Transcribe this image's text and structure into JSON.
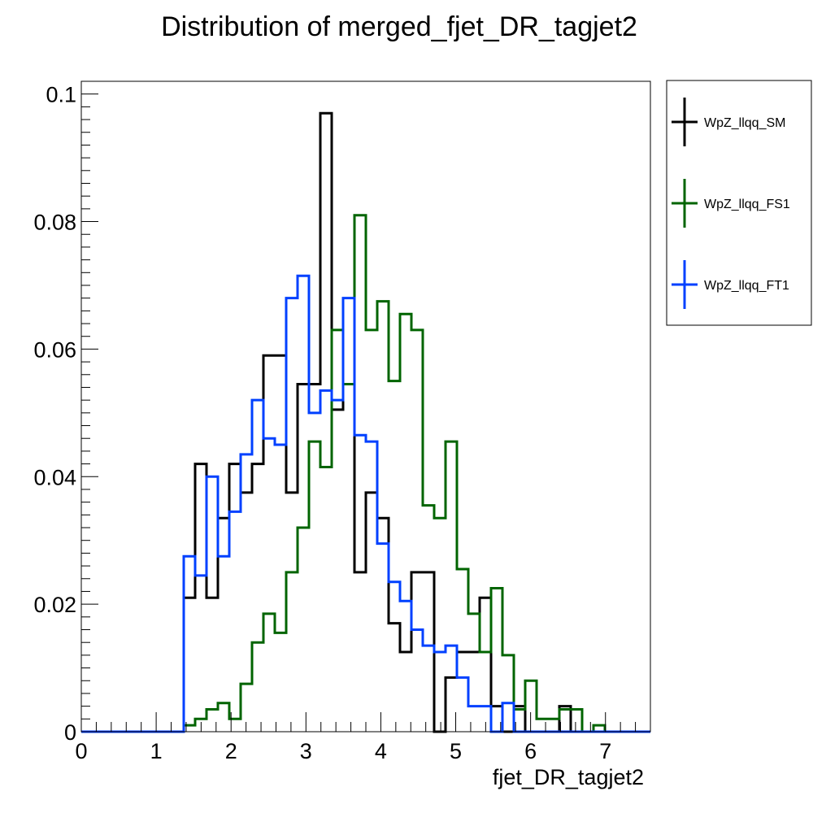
{
  "chart_data": {
    "type": "step-histogram",
    "title": "Distribution of merged_fjet_DR_tagjet2",
    "xlabel": "fjet_DR_tagjet2",
    "ylabel": "",
    "xlim": [
      0,
      7.6
    ],
    "ylim": [
      0,
      0.102
    ],
    "x_ticks": [
      "0",
      "1",
      "2",
      "3",
      "4",
      "5",
      "6",
      "7"
    ],
    "y_ticks": [
      "0",
      "0.02",
      "0.04",
      "0.06",
      "0.08",
      "0.1"
    ],
    "y_tick_values": [
      0,
      0.02,
      0.04,
      0.06,
      0.08,
      0.1
    ],
    "bin_start": 0,
    "bin_width": 0.152,
    "grid": false,
    "legend_position": "right",
    "series": [
      {
        "name": "WpZ_llqq_SM",
        "color": "#000000",
        "values": [
          0,
          0,
          0,
          0,
          0,
          0,
          0,
          0,
          0,
          0.021,
          0.042,
          0.021,
          0.0335,
          0.042,
          0.0375,
          0.042,
          0.059,
          0.059,
          0.0375,
          0.0545,
          0.0545,
          0.097,
          0.0505,
          0.0545,
          0.025,
          0.0375,
          0.0335,
          0.017,
          0.0125,
          0.025,
          0.025,
          0,
          0.0085,
          0.0125,
          0.0125,
          0.021,
          0.004,
          0,
          0.004,
          0,
          0,
          0,
          0.004,
          0,
          0,
          0,
          0,
          0,
          0,
          0
        ]
      },
      {
        "name": "WpZ_llqq_FS1",
        "color": "#006400",
        "values": [
          0,
          0,
          0,
          0,
          0,
          0,
          0,
          0,
          0,
          0.001,
          0.002,
          0.0035,
          0.0045,
          0.002,
          0.0075,
          0.014,
          0.0185,
          0.0155,
          0.025,
          0.032,
          0.0455,
          0.0415,
          0.063,
          0.0545,
          0.081,
          0.063,
          0.0675,
          0.055,
          0.0655,
          0.063,
          0.0355,
          0.0335,
          0.0455,
          0.0255,
          0.0185,
          0.0125,
          0.0225,
          0.012,
          0.0035,
          0.008,
          0.002,
          0.002,
          0.0035,
          0.0035,
          0,
          0.001,
          0,
          0,
          0,
          0
        ]
      },
      {
        "name": "WpZ_llqq_FT1",
        "color": "#0040ff",
        "values": [
          0,
          0,
          0,
          0,
          0,
          0,
          0,
          0,
          0,
          0.0275,
          0.0245,
          0.04,
          0.0275,
          0.0345,
          0.0435,
          0.052,
          0.046,
          0.045,
          0.068,
          0.0715,
          0.05,
          0.0535,
          0.052,
          0.068,
          0.0465,
          0.0455,
          0.0295,
          0.0235,
          0.0205,
          0.016,
          0.0135,
          0.0125,
          0.0135,
          0.0085,
          0.004,
          0.004,
          0,
          0.0045,
          0,
          0,
          0,
          0,
          0,
          0,
          0,
          0,
          0,
          0,
          0,
          0
        ]
      }
    ]
  }
}
